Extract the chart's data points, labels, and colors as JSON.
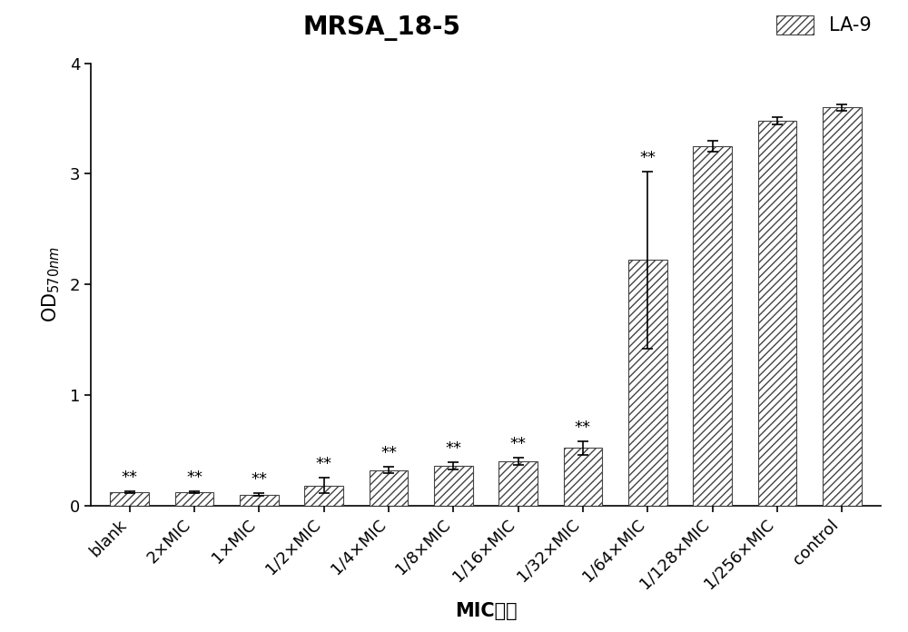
{
  "title": "MRSA_18-5",
  "legend_label": "LA-9",
  "xlabel": "MIC倍数",
  "ylabel": "OD$_{570nm}$",
  "categories": [
    "blank",
    "2×MIC",
    "1×MIC",
    "1/2×MIC",
    "1/4×MIC",
    "1/8×MIC",
    "1/16×MIC",
    "1/32×MIC",
    "1/64×MIC",
    "1/128×MIC",
    "1/256×MIC",
    "control"
  ],
  "values": [
    0.12,
    0.12,
    0.1,
    0.18,
    0.32,
    0.36,
    0.4,
    0.52,
    2.22,
    3.25,
    3.48,
    3.6
  ],
  "errors": [
    0.01,
    0.01,
    0.01,
    0.07,
    0.03,
    0.03,
    0.03,
    0.06,
    0.8,
    0.05,
    0.03,
    0.03
  ],
  "significance": [
    "**",
    "**",
    "**",
    "**",
    "**",
    "**",
    "**",
    "**",
    "**",
    "",
    "",
    ""
  ],
  "ylim": [
    0,
    4
  ],
  "yticks": [
    0,
    1,
    2,
    3,
    4
  ],
  "bar_color": "white",
  "hatch": "////",
  "edgecolor": "#444444",
  "title_fontsize": 20,
  "label_fontsize": 15,
  "tick_fontsize": 13,
  "sig_fontsize": 13,
  "legend_fontsize": 15
}
